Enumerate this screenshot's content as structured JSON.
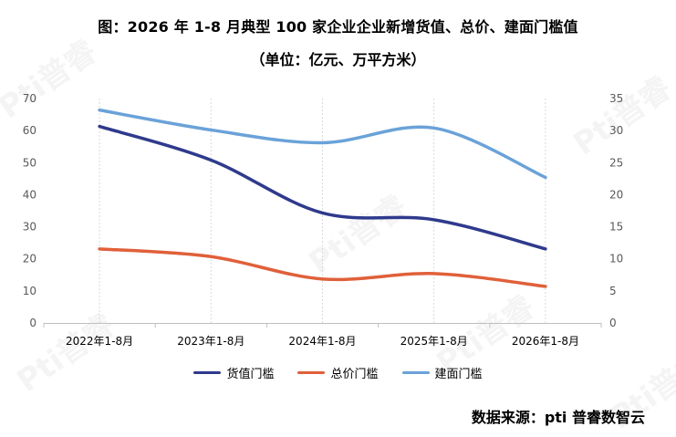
{
  "title": "图：2026 年 1-8 月典型 100 家企业企业新增货值、总价、建面门槛值",
  "subtitle": "（单位：亿元、万平方米）",
  "source": "数据来源：pti 普睿数智云",
  "watermark": "Pti普睿",
  "chart_data": {
    "type": "line",
    "categories": [
      "2022年1-8月",
      "2023年1-8月",
      "2024年1-8月",
      "2025年1-8月",
      "2026年1-8月"
    ],
    "y_left": {
      "range": [
        0,
        70
      ],
      "ticks": [
        0,
        10,
        20,
        30,
        40,
        50,
        60,
        70
      ]
    },
    "y_right": {
      "range": [
        0,
        35
      ],
      "ticks": [
        0,
        5,
        10,
        15,
        20,
        25,
        30,
        35
      ]
    },
    "grid": false,
    "legend_position": "bottom",
    "series": [
      {
        "name": "货值门槛",
        "axis": "left",
        "color": "#2f3a8c",
        "values": [
          61.3,
          50.8,
          34.3,
          32.2,
          23.1
        ]
      },
      {
        "name": "总价门槛",
        "axis": "left",
        "color": "#e0603a",
        "values": [
          23.1,
          20.7,
          13.7,
          15.4,
          11.4
        ]
      },
      {
        "name": "建面门槛",
        "axis": "right",
        "color": "#6aa2d8",
        "values": [
          33.2,
          30.1,
          28.1,
          30.4,
          22.7
        ]
      }
    ]
  }
}
